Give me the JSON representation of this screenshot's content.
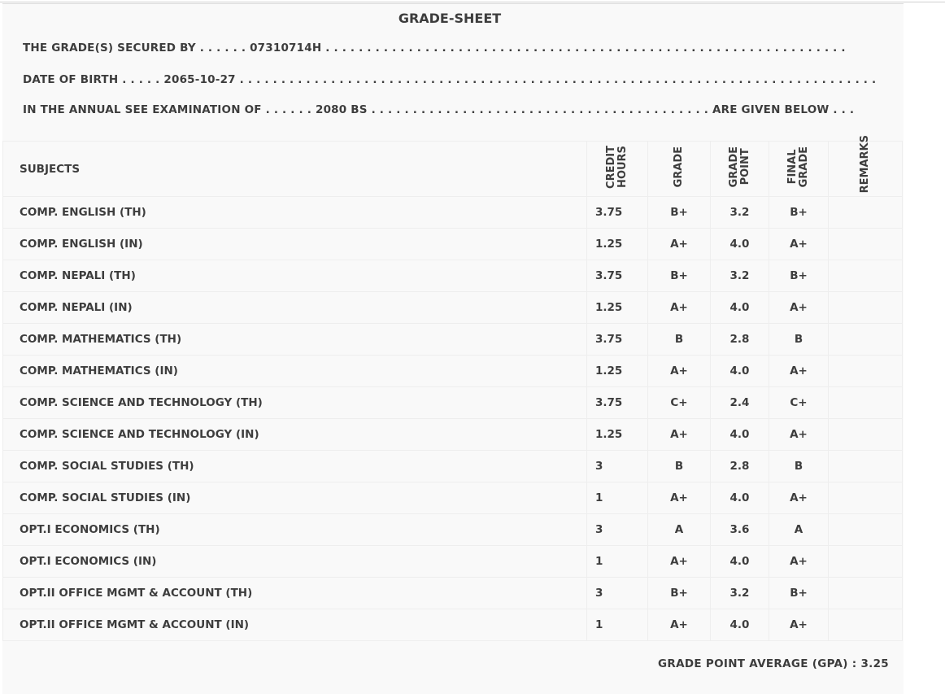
{
  "title": "GRADE-SHEET",
  "secured_by_label": "THE GRADE(S) SECURED BY . . . . . .",
  "secured_by_value": "07310714H",
  "secured_by_trail": ". . . . . . . . . . . . . . . . . . . . . . . . . . . . . . . . . . . . . . . . . . . . . . . . . . . . . . . . . . . . . . .",
  "dob_label": "DATE OF BIRTH . . . . .",
  "dob_value": "2065-10-27",
  "dob_trail": ". . . . . . . . . . . . . . . . . . . . . . . . . . . . . . . . . . . . . . . . . . . . . . . . . . . . . . . . . . . . . . . . . . . . . . . . . . . . .",
  "exam_label": "IN THE ANNUAL SEE EXAMINATION OF . . . . . .",
  "exam_value": "2080 BS",
  "exam_trail": ". . . . . . . . . . . . . . . . . . . . . . . . . . . . . . . . . . . . . . . . .",
  "exam_end": "ARE GIVEN BELOW . . .",
  "headers": {
    "subjects": "SUBJECTS",
    "credit_1": "CREDIT",
    "credit_2": "HOURS",
    "grade": "GRADE",
    "gp_1": "GRADE",
    "gp_2": "POINT",
    "fg_1": "FINAL",
    "fg_2": "GRADE",
    "remarks": "REMARKS"
  },
  "rows": [
    [
      "COMP. ENGLISH (TH)",
      "3.75",
      "B+",
      "3.2",
      "B+"
    ],
    [
      "COMP. ENGLISH (IN)",
      "1.25",
      "A+",
      "4.0",
      "A+"
    ],
    [
      "COMP. NEPALI (TH)",
      "3.75",
      "B+",
      "3.2",
      "B+"
    ],
    [
      "COMP. NEPALI (IN)",
      "1.25",
      "A+",
      "4.0",
      "A+"
    ],
    [
      "COMP. MATHEMATICS (TH)",
      "3.75",
      "B",
      "2.8",
      "B"
    ],
    [
      "COMP. MATHEMATICS (IN)",
      "1.25",
      "A+",
      "4.0",
      "A+"
    ],
    [
      "COMP. SCIENCE AND TECHNOLOGY (TH)",
      "3.75",
      "C+",
      "2.4",
      "C+"
    ],
    [
      "COMP. SCIENCE AND TECHNOLOGY (IN)",
      "1.25",
      "A+",
      "4.0",
      "A+"
    ],
    [
      "COMP. SOCIAL STUDIES (TH)",
      "3",
      "B",
      "2.8",
      "B"
    ],
    [
      "COMP. SOCIAL STUDIES (IN)",
      "1",
      "A+",
      "4.0",
      "A+"
    ],
    [
      "OPT.I ECONOMICS (TH)",
      "3",
      "A",
      "3.6",
      "A"
    ],
    [
      "OPT.I ECONOMICS (IN)",
      "1",
      "A+",
      "4.0",
      "A+"
    ],
    [
      "OPT.II OFFICE MGMT & ACCOUNT (TH)",
      "3",
      "B+",
      "3.2",
      "B+"
    ],
    [
      "OPT.II OFFICE MGMT & ACCOUNT (IN)",
      "1",
      "A+",
      "4.0",
      "A+"
    ]
  ],
  "gpa_label": "GRADE POINT AVERAGE (GPA) :",
  "gpa_value": "3.25"
}
